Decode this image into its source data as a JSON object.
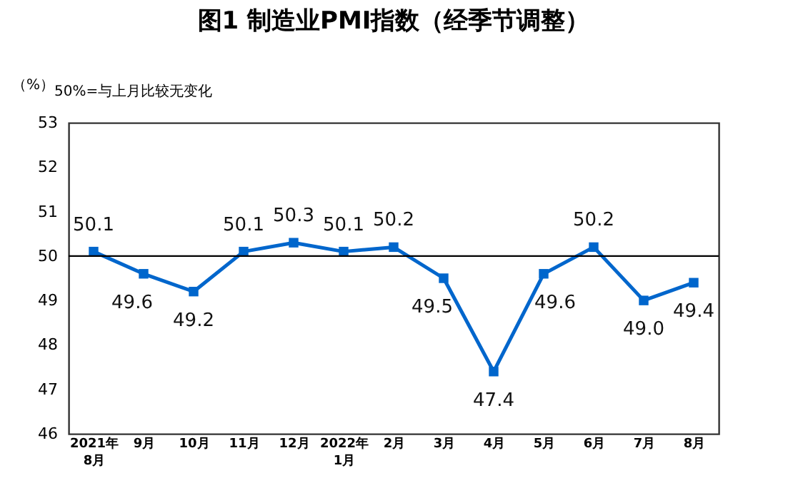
{
  "chart_data": {
    "type": "line",
    "title": "图1 制造业PMI指数（经季节调整）",
    "ylabel": "（%）",
    "annotations": [
      "50%=与上月比较无变化"
    ],
    "categories": [
      "2021年\n8月",
      "9月",
      "10月",
      "11月",
      "12月",
      "2022年\n1月",
      "2月",
      "3月",
      "4月",
      "5月",
      "6月",
      "7月",
      "8月"
    ],
    "series": [
      {
        "color": "#0066cc",
        "values": [
          50.1,
          49.6,
          49.2,
          50.1,
          50.3,
          50.1,
          50.2,
          49.5,
          47.4,
          49.6,
          50.2,
          49.0,
          49.4
        ],
        "value_labels": [
          "50.1",
          "49.6",
          "49.2",
          "50.1",
          "50.3",
          "50.1",
          "50.2",
          "49.5",
          "47.4",
          "49.6",
          "50.2",
          "49.0",
          "49.4"
        ]
      }
    ],
    "ylim": [
      46,
      53
    ],
    "yticks": [
      46,
      47,
      48,
      49,
      50,
      51,
      52,
      53
    ],
    "ref_lines": [
      {
        "axis": "y",
        "value": 50,
        "color": "#000000"
      }
    ],
    "marker": "square",
    "line_style": "solid"
  }
}
